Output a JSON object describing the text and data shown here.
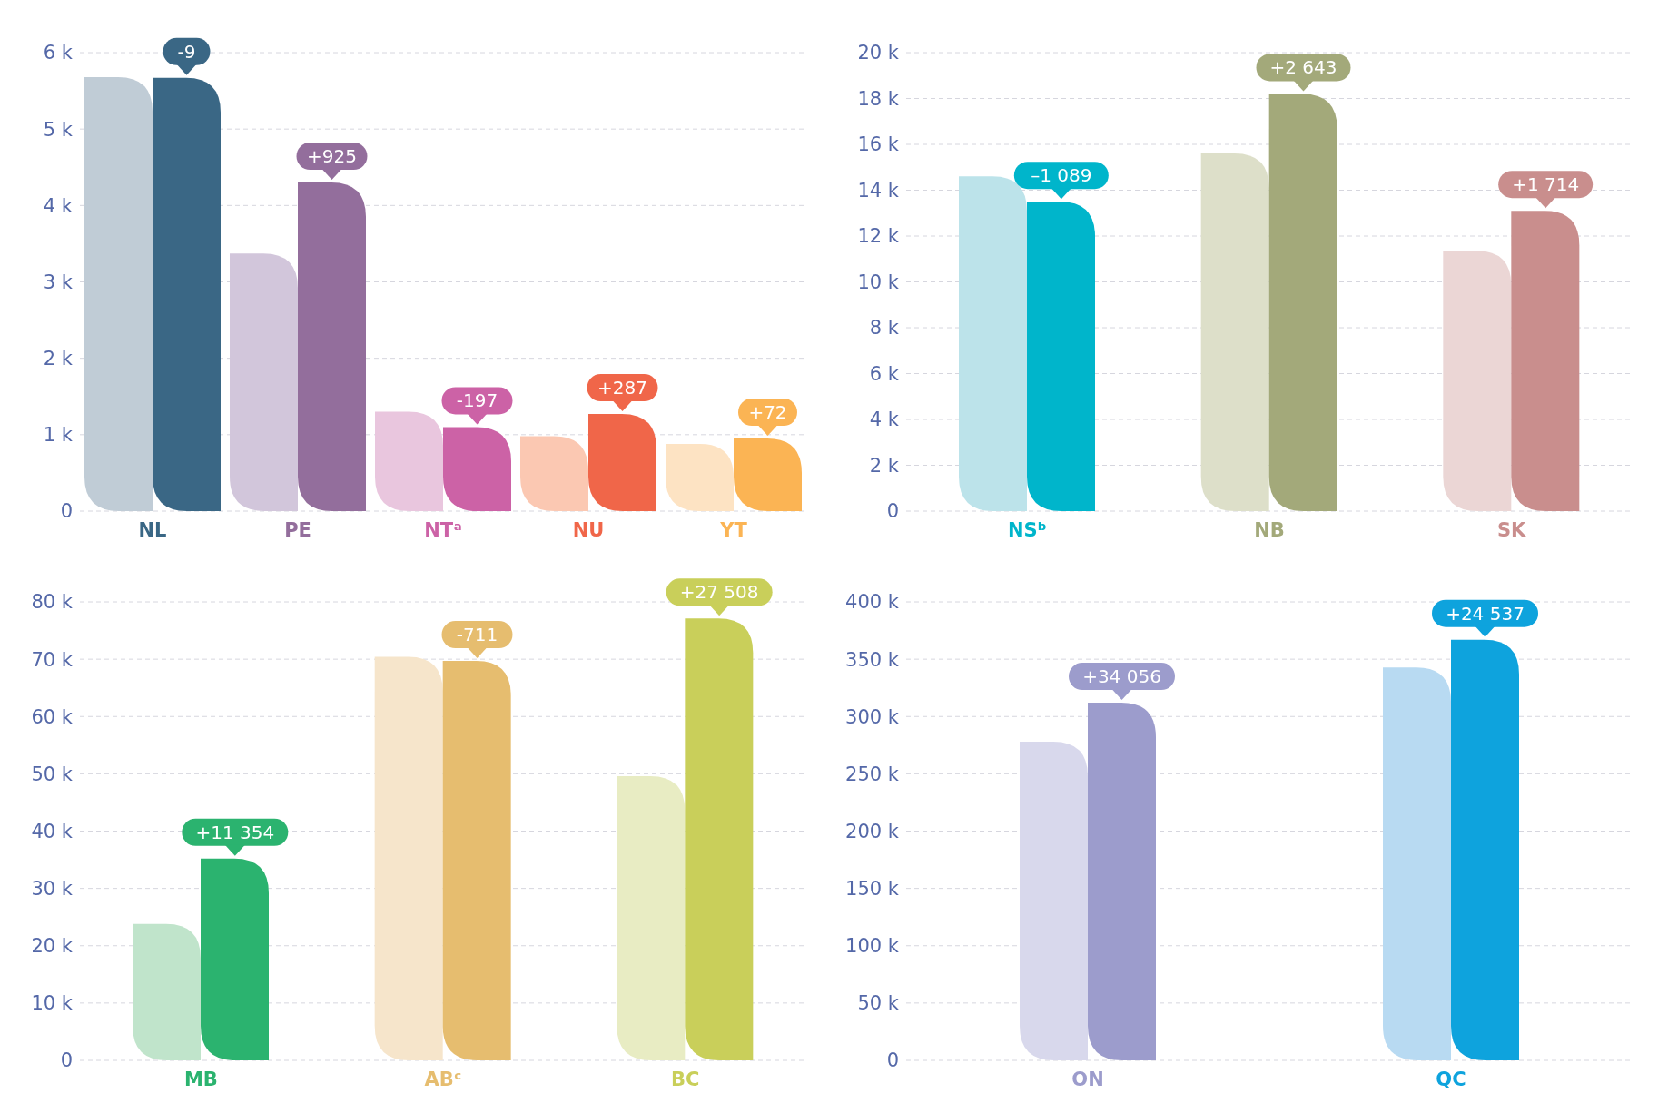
{
  "chart_data": [
    {
      "type": "bar",
      "categories": [
        "NL",
        "PE",
        "NTᵃ",
        "NU",
        "YT"
      ],
      "series": [
        {
          "colors": [
            "#c0ccd6",
            "#d2c6db",
            "#e9c6de",
            "#fbc8b2",
            "#fde3c3"
          ],
          "values": [
            5680,
            3370,
            1300,
            980,
            880
          ]
        },
        {
          "colors": [
            "#3a6785",
            "#936e9c",
            "#cc62a6",
            "#f06649",
            "#fbb454"
          ],
          "values": [
            5670,
            4300,
            1100,
            1270,
            950
          ]
        }
      ],
      "ylim": [
        0,
        6000
      ],
      "yticks": [
        {
          "value": 0,
          "label": "0"
        },
        {
          "value": 1000,
          "label": "1 k"
        },
        {
          "value": 2000,
          "label": "2 k"
        },
        {
          "value": 3000,
          "label": "3 k"
        },
        {
          "value": 4000,
          "label": "4 k"
        },
        {
          "value": 5000,
          "label": "5 k"
        },
        {
          "value": 6000,
          "label": "6 k"
        }
      ],
      "grid": "y",
      "annotations": [
        {
          "text": "-9",
          "x": "NL",
          "y": 5670
        },
        {
          "text": "+925",
          "x": "PE",
          "y": 4300
        },
        {
          "text": "-197",
          "x": "NTᵃ",
          "y": 1100
        },
        {
          "text": "+287",
          "x": "NU",
          "y": 1270
        },
        {
          "text": "+72",
          "x": "YT",
          "y": 950
        }
      ]
    },
    {
      "type": "bar",
      "categories": [
        "NSᵇ",
        "NB",
        "SK"
      ],
      "series": [
        {
          "colors": [
            "#bce3ea",
            "#dddfc9",
            "#ebd6d5"
          ],
          "values": [
            14600,
            15600,
            11360
          ]
        },
        {
          "colors": [
            "#00b5cb",
            "#a3a97a",
            "#c98e8d"
          ],
          "values": [
            13500,
            18200,
            13100
          ]
        }
      ],
      "ylim": [
        0,
        20000
      ],
      "yticks": [
        {
          "value": 0,
          "label": "0"
        },
        {
          "value": 2000,
          "label": "2 k"
        },
        {
          "value": 4000,
          "label": "4 k"
        },
        {
          "value": 6000,
          "label": "6 k"
        },
        {
          "value": 8000,
          "label": "8 k"
        },
        {
          "value": 10000,
          "label": "10 k"
        },
        {
          "value": 12000,
          "label": "12 k"
        },
        {
          "value": 14000,
          "label": "14 k"
        },
        {
          "value": 16000,
          "label": "16 k"
        },
        {
          "value": 18000,
          "label": "18 k"
        },
        {
          "value": 20000,
          "label": "20 k"
        }
      ],
      "grid": "y",
      "annotations": [
        {
          "text": "–1 089",
          "x": "NSᵇ",
          "y": 13500
        },
        {
          "text": "+2 643",
          "x": "NB",
          "y": 18200
        },
        {
          "text": "+1 714",
          "x": "SK",
          "y": 13100
        }
      ]
    },
    {
      "type": "bar",
      "categories": [
        "MB",
        "ABᶜ",
        "BC"
      ],
      "series": [
        {
          "colors": [
            "#c0e4cb",
            "#f6e5cb",
            "#e8ecc3"
          ],
          "values": [
            23800,
            70400,
            49600
          ]
        },
        {
          "colors": [
            "#2bb36f",
            "#e6bd6f",
            "#c9cf5a"
          ],
          "values": [
            35200,
            69700,
            77100
          ]
        }
      ],
      "ylim": [
        0,
        80000
      ],
      "yticks": [
        {
          "value": 0,
          "label": "0"
        },
        {
          "value": 10000,
          "label": "10 k"
        },
        {
          "value": 20000,
          "label": "20 k"
        },
        {
          "value": 30000,
          "label": "30 k"
        },
        {
          "value": 40000,
          "label": "40 k"
        },
        {
          "value": 50000,
          "label": "50 k"
        },
        {
          "value": 60000,
          "label": "60 k"
        },
        {
          "value": 70000,
          "label": "70 k"
        },
        {
          "value": 80000,
          "label": "80 k"
        }
      ],
      "grid": "y",
      "annotations": [
        {
          "text": "+11 354",
          "x": "MB",
          "y": 35200
        },
        {
          "text": "-711",
          "x": "ABᶜ",
          "y": 69700
        },
        {
          "text": "+27 508",
          "x": "BC",
          "y": 77100
        }
      ]
    },
    {
      "type": "bar",
      "categories": [
        "ON",
        "QC"
      ],
      "series": [
        {
          "colors": [
            "#d8d8ec",
            "#b8daf2"
          ],
          "values": [
            278000,
            342800
          ]
        },
        {
          "colors": [
            "#9c9ccc",
            "#0ea3dd"
          ],
          "values": [
            312000,
            367000
          ]
        }
      ],
      "ylim": [
        0,
        400000
      ],
      "yticks": [
        {
          "value": 0,
          "label": "0"
        },
        {
          "value": 50000,
          "label": "50 k"
        },
        {
          "value": 100000,
          "label": "100 k"
        },
        {
          "value": 150000,
          "label": "150 k"
        },
        {
          "value": 200000,
          "label": "200 k"
        },
        {
          "value": 250000,
          "label": "250 k"
        },
        {
          "value": 300000,
          "label": "300 k"
        },
        {
          "value": 350000,
          "label": "350 k"
        },
        {
          "value": 400000,
          "label": "400 k"
        }
      ],
      "grid": "y",
      "annotations": [
        {
          "text": "+34 056",
          "x": "ON",
          "y": 312000
        },
        {
          "text": "+24 537",
          "x": "QC",
          "y": 367000
        }
      ]
    }
  ]
}
